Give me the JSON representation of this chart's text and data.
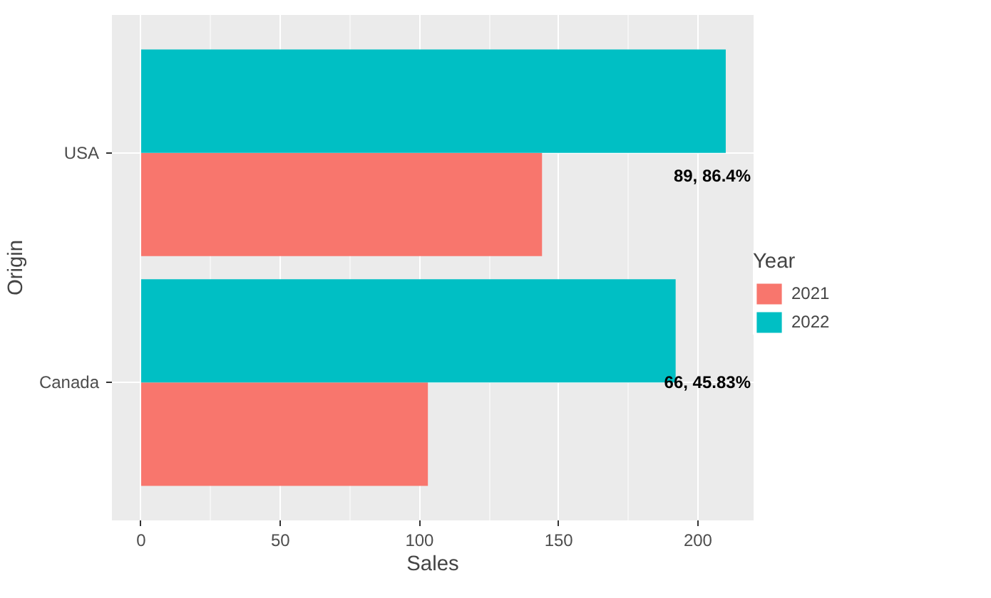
{
  "chart_data": {
    "type": "bar",
    "orientation": "horizontal",
    "xlabel": "Sales",
    "ylabel": "Origin",
    "legend_title": "Year",
    "categories": [
      "USA",
      "Canada"
    ],
    "series": [
      {
        "name": "2021",
        "color": "#f8766d",
        "values": [
          144,
          103
        ]
      },
      {
        "name": "2022",
        "color": "#00bfc4",
        "values": [
          210,
          192
        ]
      }
    ],
    "xlim": [
      -10.5,
      220
    ],
    "xticks": [
      0,
      50,
      100,
      150,
      200
    ],
    "grid": true,
    "legend": "right",
    "annotations": [
      "89, 86.4%",
      "66, 45.83%"
    ]
  }
}
